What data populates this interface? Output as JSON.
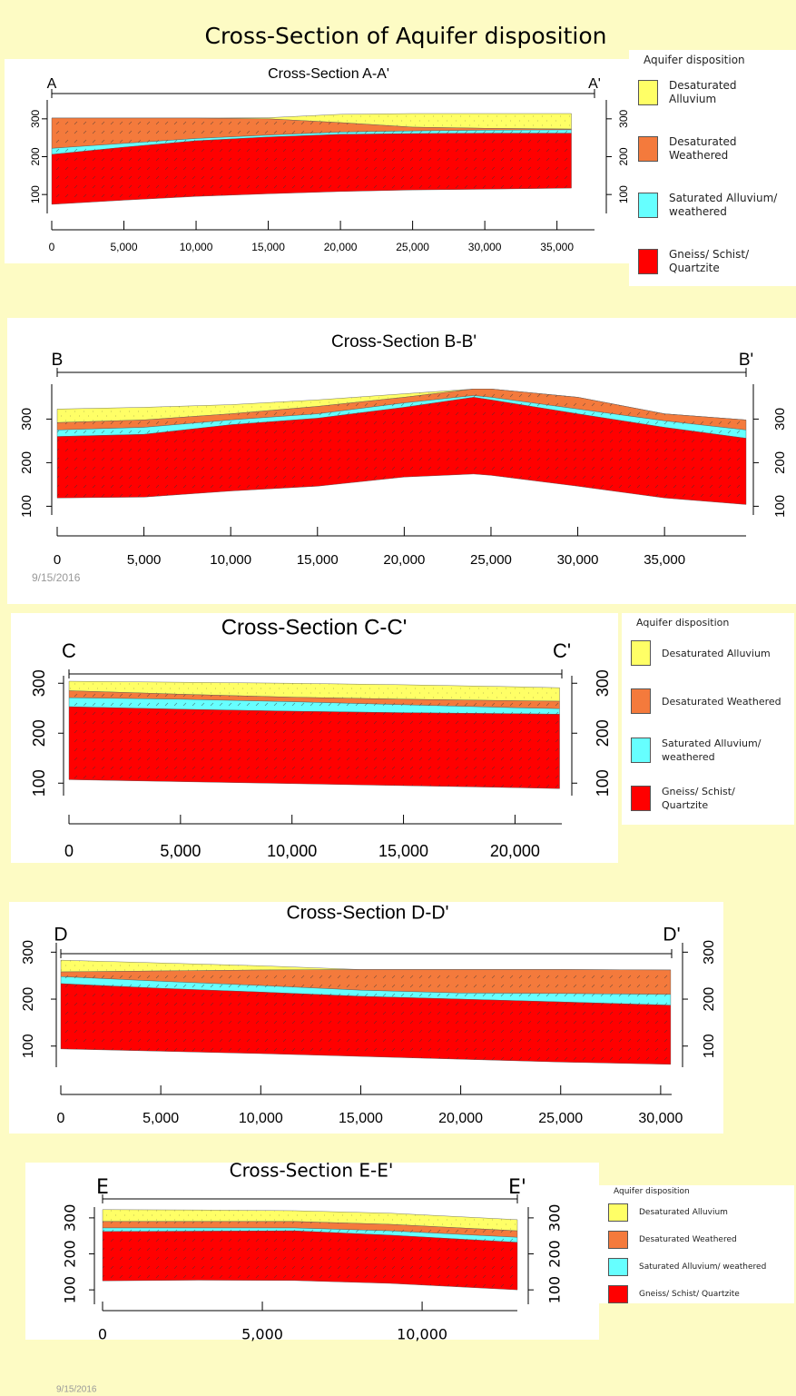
{
  "title": "Cross-Section of Aquifer disposition",
  "dates": [
    "9/15/2016",
    "9/15/2016"
  ],
  "chart_data": [
    {
      "type": "area",
      "title": "Cross-Section A-A'",
      "end_labels": [
        "A",
        "A'"
      ],
      "legend_title": "Aquifer disposition",
      "x": [
        0,
        5000,
        10000,
        15000,
        20000,
        25000,
        30000,
        36000
      ],
      "base": [
        74,
        85,
        95,
        102,
        108,
        112,
        114,
        117
      ],
      "series": [
        {
          "name": "Desaturated Alluvium",
          "color": "#ffff66",
          "values": [
            302,
            302,
            302,
            303,
            312,
            314,
            314,
            314
          ]
        },
        {
          "name": "Desaturated Weathered",
          "color": "#f47a3c",
          "values": [
            302,
            302,
            302,
            300,
            290,
            278,
            275,
            273
          ]
        },
        {
          "name": "Saturated Alluvium/ weathered",
          "color": "#66ffff",
          "values": [
            222,
            235,
            248,
            257,
            265,
            268,
            270,
            271
          ]
        },
        {
          "name": "Gneiss/ Schist/ Quartzite",
          "color": "#ff0000",
          "values": [
            206,
            225,
            242,
            252,
            259,
            261,
            262,
            262
          ]
        }
      ],
      "xlim": [
        0,
        37600
      ],
      "xticks": [
        0,
        {
          "value": 5000,
          "label": "5,000"
        },
        {
          "value": 10000,
          "label": "10,000"
        },
        {
          "value": 15000,
          "label": "15,000"
        },
        {
          "value": 20000,
          "label": "20,000"
        },
        {
          "value": 25000,
          "label": "25,000"
        },
        {
          "value": 30000,
          "label": "30,000"
        },
        {
          "value": 35000,
          "label": "35,000"
        }
      ],
      "ylim": [
        50,
        350
      ],
      "yticks": [
        100,
        200,
        300
      ]
    },
    {
      "type": "area",
      "title": "Cross-Section B-B'",
      "end_labels": [
        "B",
        "B'"
      ],
      "x": [
        0,
        5000,
        10000,
        15000,
        20000,
        24000,
        25000,
        30000,
        35000,
        39700
      ],
      "base": [
        119,
        121,
        135,
        146,
        167,
        174,
        171,
        146,
        119,
        104
      ],
      "series": [
        {
          "color": "#ffff66",
          "values": [
            323,
            327,
            333,
            344,
            358,
            369,
            369,
            350,
            312,
            298
          ]
        },
        {
          "color": "#f47a3c",
          "values": [
            292,
            298,
            312,
            329,
            350,
            369,
            369,
            350,
            312,
            298
          ]
        },
        {
          "color": "#66ffff",
          "values": [
            275,
            281,
            298,
            312,
            337,
            354,
            350,
            323,
            296,
            275
          ]
        },
        {
          "color": "#ff0000",
          "values": [
            260,
            265,
            287,
            302,
            327,
            350,
            344,
            312,
            281,
            256
          ]
        }
      ],
      "xlim": [
        0,
        39700
      ],
      "xticks": [
        0,
        {
          "value": 5000,
          "label": "5,000"
        },
        {
          "value": 10000,
          "label": "10,000"
        },
        {
          "value": 15000,
          "label": "15,000"
        },
        {
          "value": 20000,
          "label": "20,000"
        },
        {
          "value": 25000,
          "label": "25,000"
        },
        {
          "value": 30000,
          "label": "30,000"
        },
        {
          "value": 35000,
          "label": "35,000"
        }
      ],
      "ylim": [
        80,
        380
      ],
      "yticks": [
        100,
        200,
        300
      ]
    },
    {
      "type": "area",
      "title": "Cross-Section C-C'",
      "end_labels": [
        "C",
        "C'"
      ],
      "legend_title": "Aquifer disposition",
      "x": [
        0,
        5000,
        10000,
        15000,
        20000,
        22000
      ],
      "base": [
        107,
        103,
        99,
        95,
        91,
        89
      ],
      "series": [
        {
          "name": "Desaturated Alluvium",
          "color": "#ffff66",
          "values": [
            304,
            302,
            300,
            297,
            293,
            291
          ]
        },
        {
          "name": "Desaturated Weathered",
          "color": "#f47a3c",
          "values": [
            285,
            278,
            272,
            268,
            265,
            264
          ]
        },
        {
          "name": "Saturated Alluvium/ weathered",
          "color": "#66ffff",
          "values": [
            271,
            268,
            263,
            257,
            251,
            249
          ]
        },
        {
          "name": "Gneiss/ Schist/ Quartzite",
          "color": "#ff0000",
          "values": [
            253,
            248,
            244,
            241,
            239,
            238
          ]
        }
      ],
      "xlim": [
        0,
        22100
      ],
      "xticks": [
        0,
        {
          "value": 5000,
          "label": "5,000"
        },
        {
          "value": 10000,
          "label": "10,000"
        },
        {
          "value": 15000,
          "label": "15,000"
        },
        {
          "value": 20000,
          "label": "20,000"
        }
      ],
      "ylim": [
        75,
        315
      ],
      "yticks": [
        100,
        200,
        300
      ]
    },
    {
      "type": "area",
      "title": "Cross-Section D-D'",
      "end_labels": [
        "D",
        "D'"
      ],
      "x": [
        0,
        5000,
        10000,
        15000,
        20000,
        25000,
        30500
      ],
      "base": [
        94,
        89,
        84,
        78,
        72,
        66,
        61
      ],
      "series": [
        {
          "color": "#ffff66",
          "values": [
            283,
            277,
            271,
            263,
            263,
            263,
            262
          ]
        },
        {
          "color": "#f47a3c",
          "values": [
            258,
            260,
            262,
            263,
            263,
            263,
            262
          ]
        },
        {
          "color": "#66ffff",
          "values": [
            248,
            238,
            229,
            219,
            213,
            212,
            210
          ]
        },
        {
          "color": "#ff0000",
          "values": [
            233,
            223,
            215,
            206,
            200,
            194,
            187
          ]
        }
      ],
      "xlim": [
        0,
        30550
      ],
      "xticks": [
        0,
        {
          "value": 5000,
          "label": "5,000"
        },
        {
          "value": 10000,
          "label": "10,000"
        },
        {
          "value": 15000,
          "label": "15,000"
        },
        {
          "value": 20000,
          "label": "20,000"
        },
        {
          "value": 25000,
          "label": "25,000"
        },
        {
          "value": 30000,
          "label": "30,000"
        }
      ],
      "ylim": [
        55,
        320
      ],
      "yticks": [
        100,
        200,
        300
      ]
    },
    {
      "type": "area",
      "title": "Cross-Section E-E'",
      "end_labels": [
        "E",
        "E'"
      ],
      "legend_title": "Aquifer disposition",
      "x": [
        0,
        3000,
        6000,
        9000,
        12980
      ],
      "base": [
        125,
        127,
        126,
        118,
        100
      ],
      "series": [
        {
          "name": "Desaturated Alluvium",
          "color": "#ffff66",
          "values": [
            323,
            322,
            320,
            313,
            295
          ]
        },
        {
          "name": "Desaturated Weathered",
          "color": "#f47a3c",
          "values": [
            290,
            290,
            290,
            282,
            264
          ]
        },
        {
          "name": "Saturated Alluvium/ weathered",
          "color": "#66ffff",
          "values": [
            272,
            272,
            272,
            264,
            246
          ]
        },
        {
          "name": "Gneiss/ Schist/ Quartzite",
          "color": "#ff0000",
          "values": [
            262,
            263,
            264,
            252,
            232
          ]
        }
      ],
      "xlim": [
        0,
        12980
      ],
      "xticks": [
        0,
        {
          "value": 5000,
          "label": "5,000"
        },
        {
          "value": 10000,
          "label": "10,000"
        }
      ],
      "ylim": [
        60,
        330
      ],
      "yticks": [
        100,
        200,
        300
      ]
    }
  ]
}
